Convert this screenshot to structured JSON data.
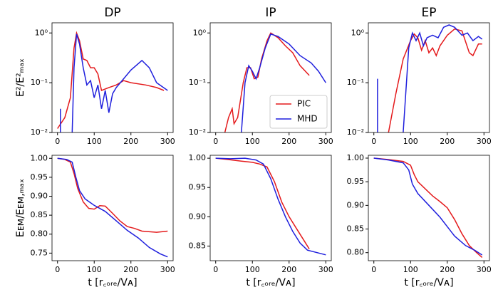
{
  "chart_data": [
    {
      "type": "line",
      "title": "DP",
      "y_label": "E²/E²ₘₐₓ",
      "log_y": true,
      "xlim": [
        -15,
        315
      ],
      "xticks": [
        0,
        100,
        200,
        300
      ],
      "ylim": [
        0.01,
        1.6
      ],
      "yticks": [
        {
          "value": 0.01,
          "label": "10⁻²"
        },
        {
          "value": 0.1,
          "label": "10⁻¹"
        },
        {
          "value": 1,
          "label": "10⁰"
        }
      ],
      "series": [
        {
          "name": "PIC",
          "color": "#e41a1c",
          "x": [
            0,
            20,
            35,
            45,
            52,
            60,
            70,
            80,
            90,
            100,
            110,
            120,
            140,
            160,
            180,
            200,
            240,
            270,
            290
          ],
          "values": [
            0.012,
            0.02,
            0.05,
            0.5,
            1.0,
            0.7,
            0.3,
            0.28,
            0.2,
            0.2,
            0.15,
            0.07,
            0.08,
            0.09,
            0.11,
            0.1,
            0.09,
            0.08,
            0.07
          ]
        },
        {
          "name": "MHD",
          "color": "#1f1fdd",
          "x": [
            8,
            8,
            null,
            40,
            45,
            52,
            60,
            70,
            80,
            90,
            100,
            110,
            120,
            130,
            140,
            150,
            160,
            180,
            200,
            230,
            250,
            270,
            300
          ],
          "values": [
            0.03,
            0.01,
            null,
            0.01,
            0.2,
            0.95,
            0.6,
            0.2,
            0.09,
            0.11,
            0.05,
            0.09,
            0.03,
            0.07,
            0.025,
            0.06,
            0.08,
            0.12,
            0.18,
            0.28,
            0.2,
            0.1,
            0.07
          ]
        }
      ]
    },
    {
      "type": "line",
      "title": "IP",
      "log_y": true,
      "xlim": [
        -15,
        315
      ],
      "xticks": [
        0,
        100,
        200,
        300
      ],
      "ylim": [
        0.01,
        1.6
      ],
      "yticks": [
        {
          "value": 0.01,
          "label": "10⁻²"
        },
        {
          "value": 0.1,
          "label": "10⁻¹"
        },
        {
          "value": 1,
          "label": "10⁰"
        }
      ],
      "legend": "lower right",
      "series": [
        {
          "name": "PIC",
          "color": "#e41a1c",
          "x": [
            25,
            35,
            45,
            50,
            60,
            75,
            85,
            95,
            105,
            115,
            125,
            140,
            150,
            170,
            190,
            210,
            230,
            255
          ],
          "values": [
            0.01,
            0.02,
            0.03,
            0.015,
            0.02,
            0.1,
            0.2,
            0.2,
            0.12,
            0.13,
            0.3,
            0.7,
            1.0,
            0.8,
            0.55,
            0.4,
            0.22,
            0.14
          ]
        },
        {
          "name": "MHD",
          "color": "#1f1fdd",
          "x": [
            70,
            80,
            90,
            100,
            110,
            120,
            135,
            150,
            170,
            200,
            230,
            260,
            280,
            300
          ],
          "values": [
            0.01,
            0.1,
            0.22,
            0.17,
            0.12,
            0.2,
            0.5,
            0.95,
            0.85,
            0.6,
            0.35,
            0.25,
            0.17,
            0.1
          ]
        }
      ]
    },
    {
      "type": "line",
      "title": "EP",
      "log_y": true,
      "xlim": [
        -15,
        315
      ],
      "xticks": [
        0,
        100,
        200,
        300
      ],
      "ylim": [
        0.01,
        1.6
      ],
      "yticks": [
        {
          "value": 0.01,
          "label": "10⁻²"
        },
        {
          "value": 0.1,
          "label": "10⁻¹"
        },
        {
          "value": 1,
          "label": "10⁰"
        }
      ],
      "series": [
        {
          "name": "PIC",
          "color": "#e41a1c",
          "x": [
            40,
            60,
            80,
            100,
            110,
            120,
            130,
            140,
            150,
            160,
            170,
            180,
            200,
            220,
            240,
            260,
            270,
            285,
            295
          ],
          "values": [
            0.01,
            0.06,
            0.3,
            0.7,
            0.95,
            0.8,
            0.45,
            0.7,
            0.4,
            0.5,
            0.35,
            0.55,
            0.9,
            1.2,
            1.1,
            0.4,
            0.35,
            0.6,
            0.6
          ]
        },
        {
          "name": "MHD",
          "color": "#1f1fdd",
          "x": [
            10,
            10,
            null,
            80,
            95,
            105,
            115,
            125,
            135,
            145,
            160,
            175,
            190,
            205,
            220,
            240,
            255,
            270,
            285,
            295
          ],
          "values": [
            0.12,
            0.01,
            null,
            0.01,
            0.5,
            1.0,
            0.7,
            1.0,
            0.55,
            0.8,
            0.9,
            0.8,
            1.3,
            1.45,
            1.3,
            0.9,
            1.0,
            0.7,
            0.85,
            0.75
          ]
        }
      ]
    },
    {
      "type": "line",
      "y_label": "Eᴇᴍ/Eᴇᴍ,ₘₐₓ",
      "x_label": "t [r꜀ₒᵣₑ/Vᴀ]",
      "xlim": [
        -15,
        315
      ],
      "xticks": [
        0,
        100,
        200,
        300
      ],
      "ylim": [
        0.73,
        1.008
      ],
      "yticks": [
        {
          "value": 0.75,
          "label": "0.75"
        },
        {
          "value": 0.8,
          "label": "0.80"
        },
        {
          "value": 0.85,
          "label": "0.85"
        },
        {
          "value": 0.9,
          "label": "0.90"
        },
        {
          "value": 0.95,
          "label": "0.95"
        },
        {
          "value": 1,
          "label": "1.00"
        }
      ],
      "series": [
        {
          "name": "PIC",
          "color": "#e41a1c",
          "x": [
            0,
            20,
            35,
            45,
            55,
            70,
            85,
            100,
            115,
            130,
            150,
            170,
            190,
            210,
            230,
            270,
            300
          ],
          "values": [
            1.0,
            0.997,
            0.99,
            0.96,
            0.92,
            0.885,
            0.868,
            0.866,
            0.875,
            0.874,
            0.855,
            0.835,
            0.82,
            0.815,
            0.808,
            0.805,
            0.808
          ]
        },
        {
          "name": "MHD",
          "color": "#1f1fdd",
          "x": [
            0,
            25,
            40,
            50,
            60,
            75,
            100,
            130,
            160,
            190,
            220,
            250,
            280,
            300
          ],
          "values": [
            1.0,
            0.997,
            0.99,
            0.95,
            0.915,
            0.893,
            0.876,
            0.86,
            0.835,
            0.81,
            0.79,
            0.765,
            0.748,
            0.74
          ]
        }
      ]
    },
    {
      "type": "line",
      "x_label": "t [r꜀ₒᵣₑ/Vᴀ]",
      "xlim": [
        -15,
        315
      ],
      "xticks": [
        0,
        100,
        200,
        300
      ],
      "ylim": [
        0.825,
        1.005
      ],
      "yticks": [
        {
          "value": 0.85,
          "label": "0.85"
        },
        {
          "value": 0.9,
          "label": "0.90"
        },
        {
          "value": 0.95,
          "label": "0.95"
        },
        {
          "value": 1,
          "label": "1.00"
        }
      ],
      "series": [
        {
          "name": "PIC",
          "color": "#e41a1c",
          "x": [
            0,
            30,
            70,
            100,
            120,
            140,
            160,
            180,
            200,
            220,
            240,
            255
          ],
          "values": [
            1.0,
            0.998,
            0.995,
            0.993,
            0.99,
            0.985,
            0.96,
            0.925,
            0.9,
            0.88,
            0.86,
            0.845
          ]
        },
        {
          "name": "MHD",
          "color": "#1f1fdd",
          "x": [
            0,
            40,
            80,
            110,
            130,
            150,
            170,
            190,
            210,
            230,
            250,
            300
          ],
          "values": [
            1.0,
            0.999,
            1.0,
            0.997,
            0.99,
            0.965,
            0.93,
            0.9,
            0.875,
            0.855,
            0.843,
            0.835
          ]
        }
      ]
    },
    {
      "type": "line",
      "x_label": "t [r꜀ₒᵣₑ/Vᴀ]",
      "xlim": [
        -15,
        315
      ],
      "xticks": [
        0,
        100,
        200,
        300
      ],
      "ylim": [
        0.783,
        1.006
      ],
      "yticks": [
        {
          "value": 0.8,
          "label": "0.80"
        },
        {
          "value": 0.85,
          "label": "0.85"
        },
        {
          "value": 0.9,
          "label": "0.90"
        },
        {
          "value": 0.95,
          "label": "0.95"
        },
        {
          "value": 1,
          "label": "1.00"
        }
      ],
      "series": [
        {
          "name": "PIC",
          "color": "#e41a1c",
          "x": [
            0,
            40,
            80,
            100,
            110,
            120,
            140,
            160,
            180,
            200,
            220,
            240,
            260,
            280,
            295
          ],
          "values": [
            1.0,
            0.997,
            0.993,
            0.985,
            0.965,
            0.95,
            0.935,
            0.92,
            0.908,
            0.895,
            0.87,
            0.84,
            0.815,
            0.8,
            0.79
          ]
        },
        {
          "name": "MHD",
          "color": "#1f1fdd",
          "x": [
            0,
            40,
            80,
            95,
            105,
            120,
            150,
            180,
            200,
            220,
            250,
            275,
            295
          ],
          "values": [
            1.0,
            0.996,
            0.99,
            0.975,
            0.945,
            0.925,
            0.9,
            0.875,
            0.855,
            0.835,
            0.815,
            0.805,
            0.795
          ]
        }
      ]
    }
  ]
}
